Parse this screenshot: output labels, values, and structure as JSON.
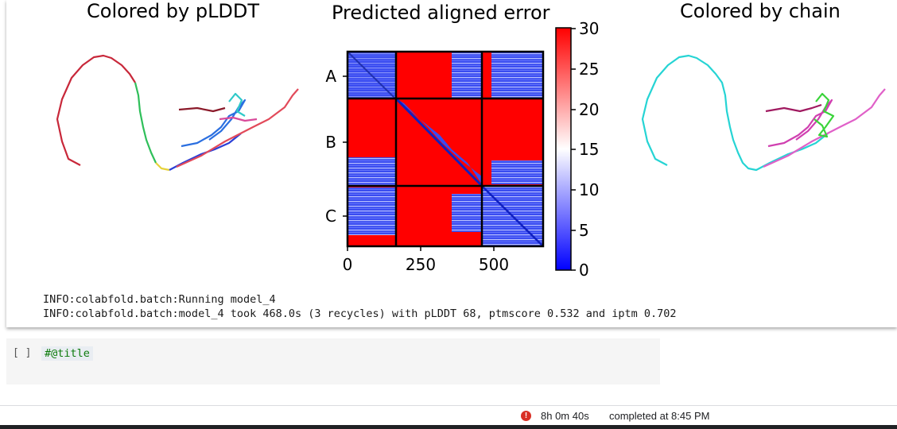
{
  "figure": {
    "left_title": "Colored by pLDDT",
    "center_title": "Predicted aligned error",
    "right_title": "Colored by chain",
    "pae_y_ticks": [
      "A",
      "B",
      "C"
    ],
    "pae_x_ticks": [
      "0",
      "250",
      "500"
    ],
    "colorbar_ticks": [
      "30",
      "25",
      "20",
      "15",
      "10",
      "5",
      "0"
    ],
    "colors": {
      "pae_high": "#ff0000",
      "pae_low": "#0000ff",
      "chain_A": "#26d4d4",
      "chain_B": "#e040c8",
      "chain_C": "#3ad43a"
    }
  },
  "log": {
    "line1": "INFO:colabfold.batch:Running model_4",
    "line2": "INFO:colabfold.batch:model_4 took 468.0s (3 recycles) with pLDDT 68, ptmscore 0.532 and iptm 0.702"
  },
  "cell": {
    "bracket": "[ ]",
    "code": "#@title"
  },
  "status": {
    "icon": "!",
    "elapsed": "8h 0m 40s",
    "completed": "completed at 8:45 PM"
  }
}
